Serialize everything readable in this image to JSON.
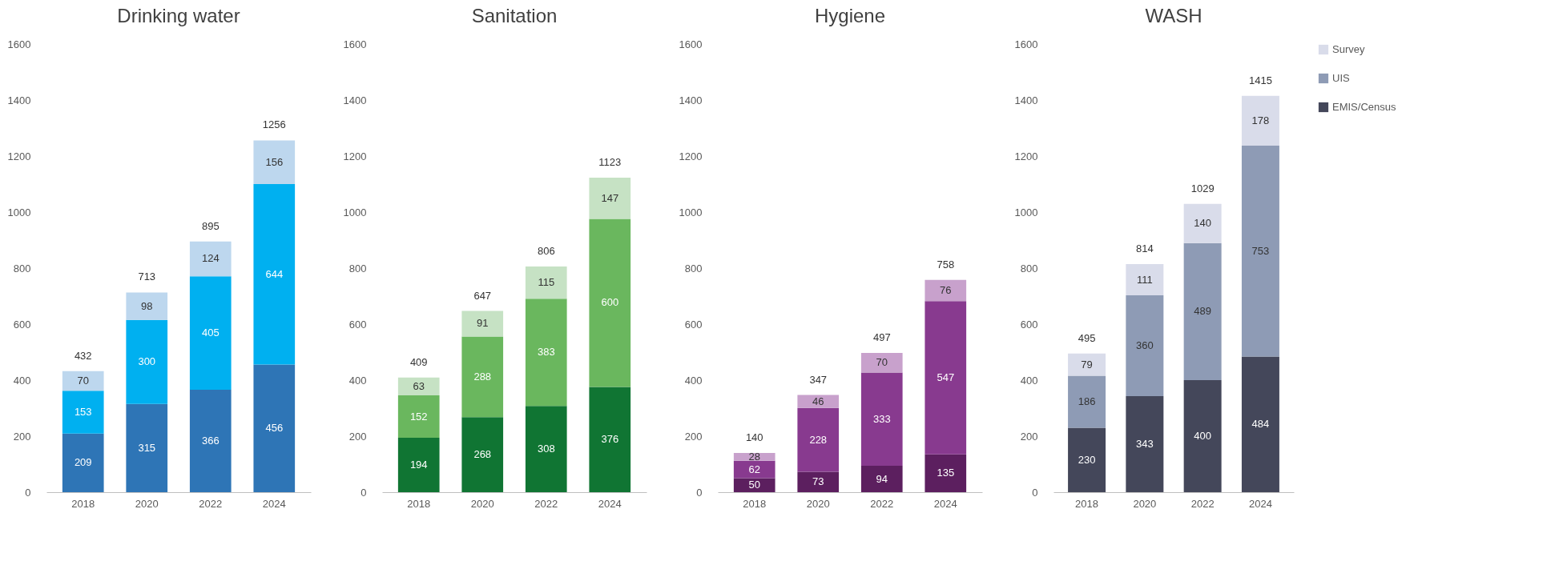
{
  "chart_data": [
    {
      "type": "bar",
      "title": "Drinking water",
      "categories": [
        "2018",
        "2020",
        "2022",
        "2024"
      ],
      "stacked": true,
      "data_labels": true,
      "grid": false,
      "legend": false,
      "ylim": [
        0,
        1600
      ],
      "yticks": [
        0,
        200,
        400,
        600,
        800,
        1000,
        1200,
        1400,
        1600
      ],
      "totals": [
        "432",
        "713",
        "895",
        "1256"
      ],
      "series": [
        {
          "color": "#2e75b6",
          "values": [
            209,
            315,
            366,
            456
          ]
        },
        {
          "color": "#00b0f0",
          "values": [
            153,
            300,
            405,
            644
          ]
        },
        {
          "color": "#bdd7ee",
          "values": [
            70,
            98,
            124,
            156
          ]
        }
      ]
    },
    {
      "type": "bar",
      "title": "Sanitation",
      "categories": [
        "2018",
        "2020",
        "2022",
        "2024"
      ],
      "stacked": true,
      "data_labels": true,
      "grid": false,
      "legend": false,
      "ylim": [
        0,
        1600
      ],
      "yticks": [
        0,
        200,
        400,
        600,
        800,
        1000,
        1200,
        1400,
        1600
      ],
      "totals": [
        "409",
        "647",
        "806",
        "1123"
      ],
      "series": [
        {
          "color": "#107533",
          "values": [
            194,
            268,
            308,
            376
          ]
        },
        {
          "color": "#6ab75e",
          "values": [
            152,
            288,
            383,
            600
          ]
        },
        {
          "color": "#c6e2c4",
          "values": [
            63,
            91,
            115,
            147
          ]
        }
      ]
    },
    {
      "type": "bar",
      "title": "Hygiene",
      "categories": [
        "2018",
        "2020",
        "2022",
        "2024"
      ],
      "stacked": true,
      "data_labels": true,
      "grid": false,
      "legend": false,
      "ylim": [
        0,
        1600
      ],
      "yticks": [
        0,
        200,
        400,
        600,
        800,
        1000,
        1200,
        1400,
        1600
      ],
      "totals": [
        "140",
        "347",
        "497",
        "758"
      ],
      "series": [
        {
          "color": "#5c1f5f",
          "values": [
            50,
            73,
            94,
            135
          ]
        },
        {
          "color": "#883a8f",
          "values": [
            62,
            228,
            333,
            547
          ]
        },
        {
          "color": "#c8a1cc",
          "values": [
            28,
            46,
            70,
            76
          ]
        }
      ]
    },
    {
      "type": "bar",
      "title": "WASH",
      "categories": [
        "2018",
        "2020",
        "2022",
        "2024"
      ],
      "stacked": true,
      "data_labels": true,
      "grid": false,
      "legend": "right",
      "ylim": [
        0,
        1600
      ],
      "yticks": [
        0,
        200,
        400,
        600,
        800,
        1000,
        1200,
        1400,
        1600
      ],
      "totals": [
        "495",
        "814",
        "1029",
        "1415"
      ],
      "series": [
        {
          "name": "EMIS/Census",
          "color": "#44475a",
          "values": [
            230,
            343,
            400,
            484
          ]
        },
        {
          "name": "UIS",
          "color": "#8e9bb5",
          "values": [
            186,
            360,
            489,
            753
          ]
        },
        {
          "name": "Survey",
          "color": "#d9dcea",
          "values": [
            79,
            111,
            140,
            178
          ]
        }
      ]
    }
  ]
}
